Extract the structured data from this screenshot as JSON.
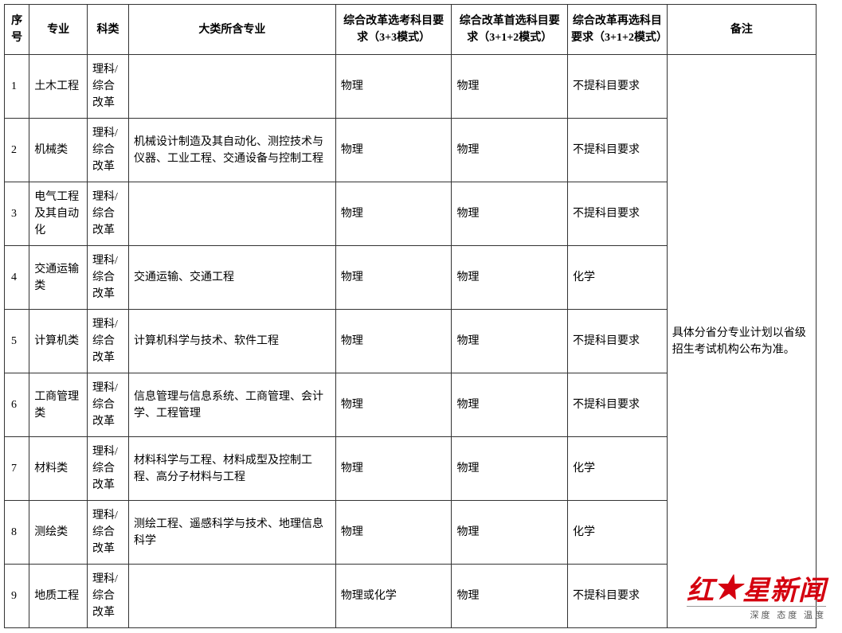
{
  "table": {
    "headers": {
      "seq": "序号",
      "major": "专业",
      "type": "科类",
      "contain": "大类所含专业",
      "req_33": "综合改革选考科目要求（3+3模式）",
      "req_312_first": "综合改革首选科目要求（3+1+2模式）",
      "req_312_second": "综合改革再选科目要求（3+1+2模式）",
      "note": "备注"
    },
    "note_merged": "具体分省分专业计划以省级招生考试机构公布为准。",
    "rows": [
      {
        "seq": "1",
        "major": "土木工程",
        "type": "理科/综合改革",
        "contain": "",
        "r33": "物理",
        "r312f": "物理",
        "r312s": "不提科目要求"
      },
      {
        "seq": "2",
        "major": "机械类",
        "type": "理科/综合改革",
        "contain": "机械设计制造及其自动化、测控技术与仪器、工业工程、交通设备与控制工程",
        "r33": "物理",
        "r312f": "物理",
        "r312s": "不提科目要求"
      },
      {
        "seq": "3",
        "major": "电气工程及其自动化",
        "type": "理科/综合改革",
        "contain": "",
        "r33": "物理",
        "r312f": "物理",
        "r312s": "不提科目要求"
      },
      {
        "seq": "4",
        "major": "交通运输类",
        "type": "理科/综合改革",
        "contain": "交通运输、交通工程",
        "r33": "物理",
        "r312f": "物理",
        "r312s": "化学"
      },
      {
        "seq": "5",
        "major": "计算机类",
        "type": "理科/综合改革",
        "contain": "计算机科学与技术、软件工程",
        "r33": "物理",
        "r312f": "物理",
        "r312s": "不提科目要求"
      },
      {
        "seq": "6",
        "major": "工商管理类",
        "type": "理科/综合改革",
        "contain": "信息管理与信息系统、工商管理、会计学、工程管理",
        "r33": "物理",
        "r312f": "物理",
        "r312s": "不提科目要求"
      },
      {
        "seq": "7",
        "major": "材料类",
        "type": "理科/综合改革",
        "contain": "材料科学与工程、材料成型及控制工程、高分子材料与工程",
        "r33": "物理",
        "r312f": "物理",
        "r312s": "化学"
      },
      {
        "seq": "8",
        "major": "测绘类",
        "type": "理科/综合改革",
        "contain": "测绘工程、遥感科学与技术、地理信息科学",
        "r33": "物理",
        "r312f": "物理",
        "r312s": "化学"
      },
      {
        "seq": "9",
        "major": "地质工程",
        "type": "理科/综合改革",
        "contain": "",
        "r33": "物理或化学",
        "r312f": "物理",
        "r312s": "不提科目要求"
      }
    ]
  },
  "watermark": {
    "main_prefix": "红",
    "main_suffix": "星新闻",
    "star": "★",
    "sub": "深度 态度 温度"
  },
  "colors": {
    "border": "#333333",
    "text": "#000000",
    "brand": "#d4000f",
    "background": "#ffffff"
  }
}
